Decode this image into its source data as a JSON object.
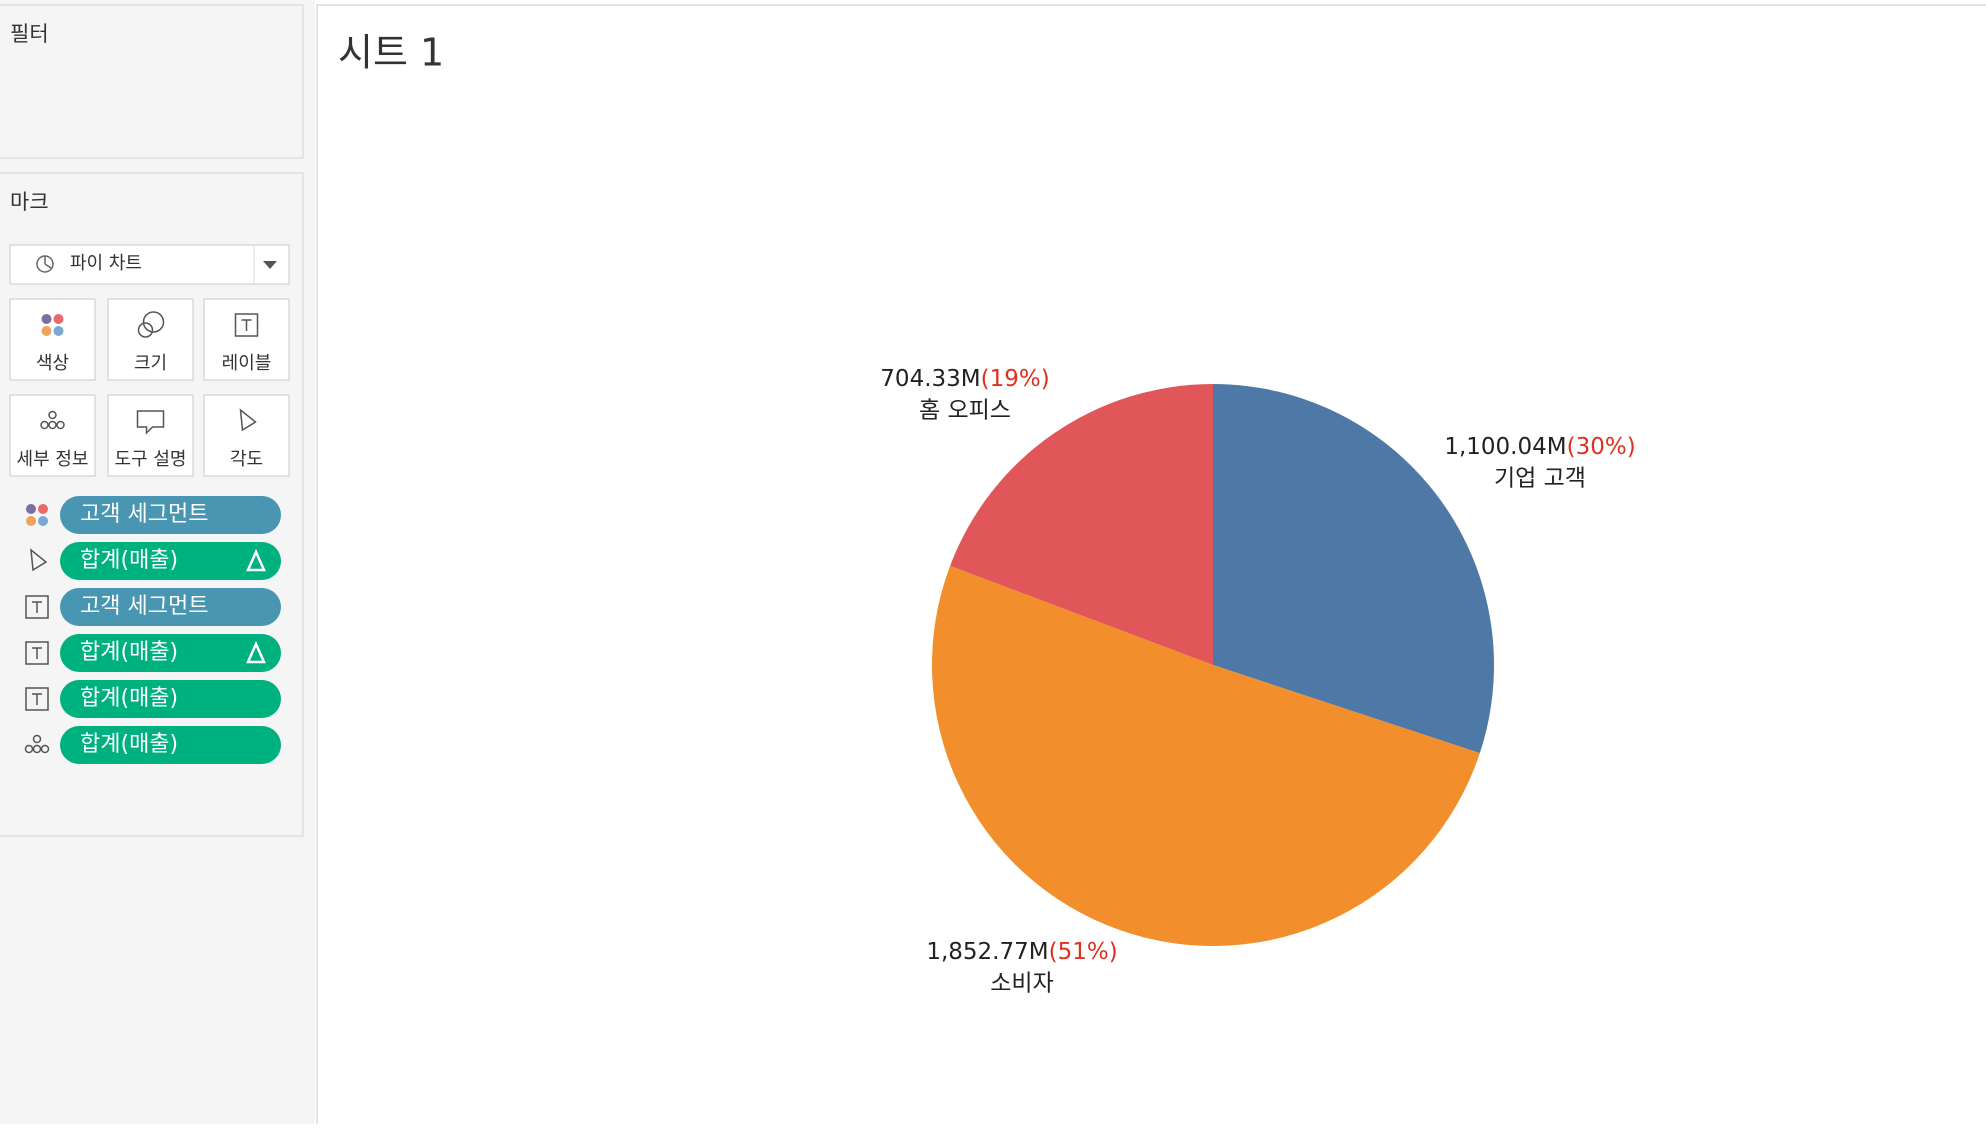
{
  "sidebar": {
    "filters_title": "필터",
    "marks_title": "마크",
    "mark_type": "파이 차트",
    "mark_buttons": [
      "색상",
      "크기",
      "레이블",
      "세부 정보",
      "도구 설명",
      "각도"
    ],
    "pills": [
      "고객 세그먼트",
      "합계(매출)",
      "고객 세그먼트",
      "합계(매출)",
      "합계(매출)",
      "합계(매출)"
    ]
  },
  "chart_data": {
    "type": "pie",
    "title": "시트 1",
    "categories": [
      "기업 고객",
      "소비자",
      "홈 오피스"
    ],
    "values": [
      1100.04,
      1852.77,
      704.33
    ],
    "value_labels": [
      "1,100.04M",
      "1,852.77M",
      "704.33M"
    ],
    "percent_labels": [
      "(30%)",
      "(51%)",
      "(19%)"
    ],
    "colors": [
      "#4e79a7",
      "#f28e2b",
      "#e15759"
    ]
  }
}
